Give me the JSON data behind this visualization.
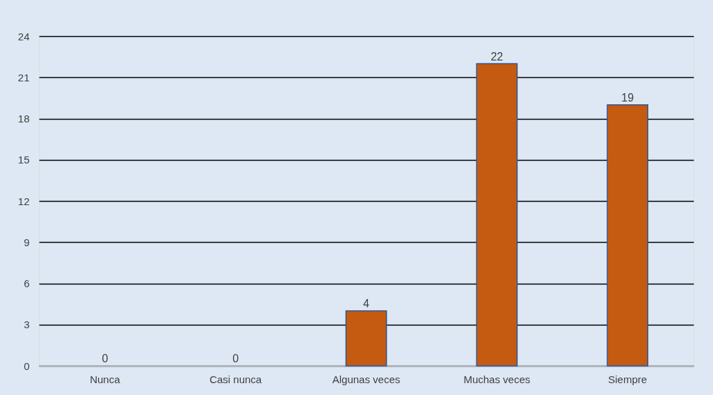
{
  "chart_data": {
    "type": "bar",
    "categories": [
      "Nunca",
      "Casi nunca",
      "Algunas veces",
      "Muchas veces",
      "Siempre"
    ],
    "values": [
      0,
      0,
      4,
      22,
      19
    ],
    "color": "#c55a11",
    "ylim": [
      0,
      24
    ],
    "yticks": [
      0,
      3,
      6,
      9,
      12,
      15,
      18,
      21,
      24
    ],
    "grid": "y",
    "data_labels": true
  }
}
